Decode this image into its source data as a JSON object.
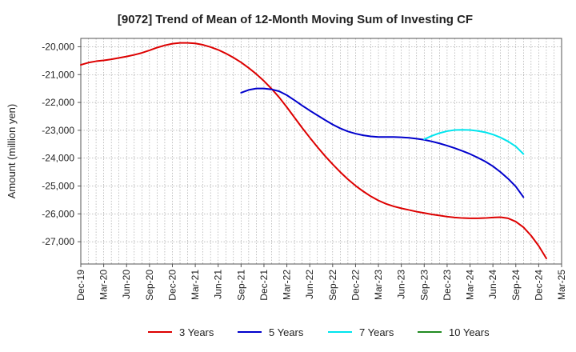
{
  "chart_data": {
    "type": "line",
    "title": "[9072]  Trend of Mean of 12-Month Moving Sum of Investing CF",
    "xlabel": "",
    "ylabel": "Amount (million yen)",
    "ylim": [
      -27800,
      -19700
    ],
    "yticks": [
      -20000,
      -21000,
      -22000,
      -23000,
      -24000,
      -25000,
      -26000,
      -27000
    ],
    "ytick_labels": [
      "-20,000",
      "-21,000",
      "-22,000",
      "-23,000",
      "-24,000",
      "-25,000",
      "-26,000",
      "-27,000"
    ],
    "x_start": "Dec-19",
    "x_months_total": 63,
    "xtick_labels": [
      "Dec-19",
      "Mar-20",
      "Jun-20",
      "Sep-20",
      "Dec-20",
      "Mar-21",
      "Jun-21",
      "Sep-21",
      "Dec-21",
      "Mar-22",
      "Jun-22",
      "Sep-22",
      "Dec-22",
      "Mar-23",
      "Jun-23",
      "Sep-23",
      "Dec-23",
      "Mar-24",
      "Jun-24",
      "Sep-24",
      "Dec-24",
      "Mar-25"
    ],
    "grid": true,
    "legend_position": "bottom",
    "series": [
      {
        "name": "3 Years",
        "color": "#dd0000",
        "points": [
          [
            0,
            -20650
          ],
          [
            1,
            -20570
          ],
          [
            2,
            -20520
          ],
          [
            3,
            -20490
          ],
          [
            4,
            -20450
          ],
          [
            5,
            -20400
          ],
          [
            6,
            -20350
          ],
          [
            7,
            -20290
          ],
          [
            8,
            -20220
          ],
          [
            9,
            -20130
          ],
          [
            10,
            -20030
          ],
          [
            11,
            -19950
          ],
          [
            12,
            -19890
          ],
          [
            13,
            -19860
          ],
          [
            14,
            -19860
          ],
          [
            15,
            -19880
          ],
          [
            16,
            -19930
          ],
          [
            17,
            -20010
          ],
          [
            18,
            -20110
          ],
          [
            19,
            -20240
          ],
          [
            20,
            -20390
          ],
          [
            21,
            -20560
          ],
          [
            22,
            -20760
          ],
          [
            23,
            -20980
          ],
          [
            24,
            -21230
          ],
          [
            25,
            -21510
          ],
          [
            26,
            -21820
          ],
          [
            27,
            -22170
          ],
          [
            28,
            -22540
          ],
          [
            29,
            -22910
          ],
          [
            30,
            -23260
          ],
          [
            31,
            -23600
          ],
          [
            32,
            -23920
          ],
          [
            33,
            -24220
          ],
          [
            34,
            -24500
          ],
          [
            35,
            -24760
          ],
          [
            36,
            -24990
          ],
          [
            37,
            -25190
          ],
          [
            38,
            -25370
          ],
          [
            39,
            -25520
          ],
          [
            40,
            -25640
          ],
          [
            41,
            -25730
          ],
          [
            42,
            -25800
          ],
          [
            43,
            -25860
          ],
          [
            44,
            -25920
          ],
          [
            45,
            -25970
          ],
          [
            46,
            -26020
          ],
          [
            47,
            -26060
          ],
          [
            48,
            -26100
          ],
          [
            49,
            -26130
          ],
          [
            50,
            -26150
          ],
          [
            51,
            -26160
          ],
          [
            52,
            -26160
          ],
          [
            53,
            -26150
          ],
          [
            54,
            -26130
          ],
          [
            55,
            -26120
          ],
          [
            56,
            -26160
          ],
          [
            57,
            -26280
          ],
          [
            58,
            -26480
          ],
          [
            59,
            -26780
          ],
          [
            60,
            -27150
          ],
          [
            61,
            -27600
          ]
        ]
      },
      {
        "name": "5 Years",
        "color": "#0000cc",
        "points": [
          [
            21,
            -21650
          ],
          [
            22,
            -21550
          ],
          [
            23,
            -21500
          ],
          [
            24,
            -21500
          ],
          [
            25,
            -21530
          ],
          [
            26,
            -21600
          ],
          [
            27,
            -21740
          ],
          [
            28,
            -21920
          ],
          [
            29,
            -22110
          ],
          [
            30,
            -22290
          ],
          [
            31,
            -22460
          ],
          [
            32,
            -22630
          ],
          [
            33,
            -22790
          ],
          [
            34,
            -22930
          ],
          [
            35,
            -23040
          ],
          [
            36,
            -23120
          ],
          [
            37,
            -23180
          ],
          [
            38,
            -23220
          ],
          [
            39,
            -23240
          ],
          [
            40,
            -23240
          ],
          [
            41,
            -23240
          ],
          [
            42,
            -23250
          ],
          [
            43,
            -23270
          ],
          [
            44,
            -23300
          ],
          [
            45,
            -23340
          ],
          [
            46,
            -23400
          ],
          [
            47,
            -23470
          ],
          [
            48,
            -23550
          ],
          [
            49,
            -23640
          ],
          [
            50,
            -23740
          ],
          [
            51,
            -23850
          ],
          [
            52,
            -23980
          ],
          [
            53,
            -24120
          ],
          [
            54,
            -24290
          ],
          [
            55,
            -24500
          ],
          [
            56,
            -24740
          ],
          [
            57,
            -25020
          ],
          [
            58,
            -25400
          ]
        ]
      },
      {
        "name": "7 Years",
        "color": "#00e5ee",
        "points": [
          [
            45,
            -23320
          ],
          [
            46,
            -23200
          ],
          [
            47,
            -23100
          ],
          [
            48,
            -23030
          ],
          [
            49,
            -22990
          ],
          [
            50,
            -22980
          ],
          [
            51,
            -22990
          ],
          [
            52,
            -23020
          ],
          [
            53,
            -23070
          ],
          [
            54,
            -23150
          ],
          [
            55,
            -23260
          ],
          [
            56,
            -23400
          ],
          [
            57,
            -23580
          ],
          [
            58,
            -23850
          ]
        ]
      },
      {
        "name": "10 Years",
        "color": "#228b22",
        "points": []
      }
    ]
  }
}
